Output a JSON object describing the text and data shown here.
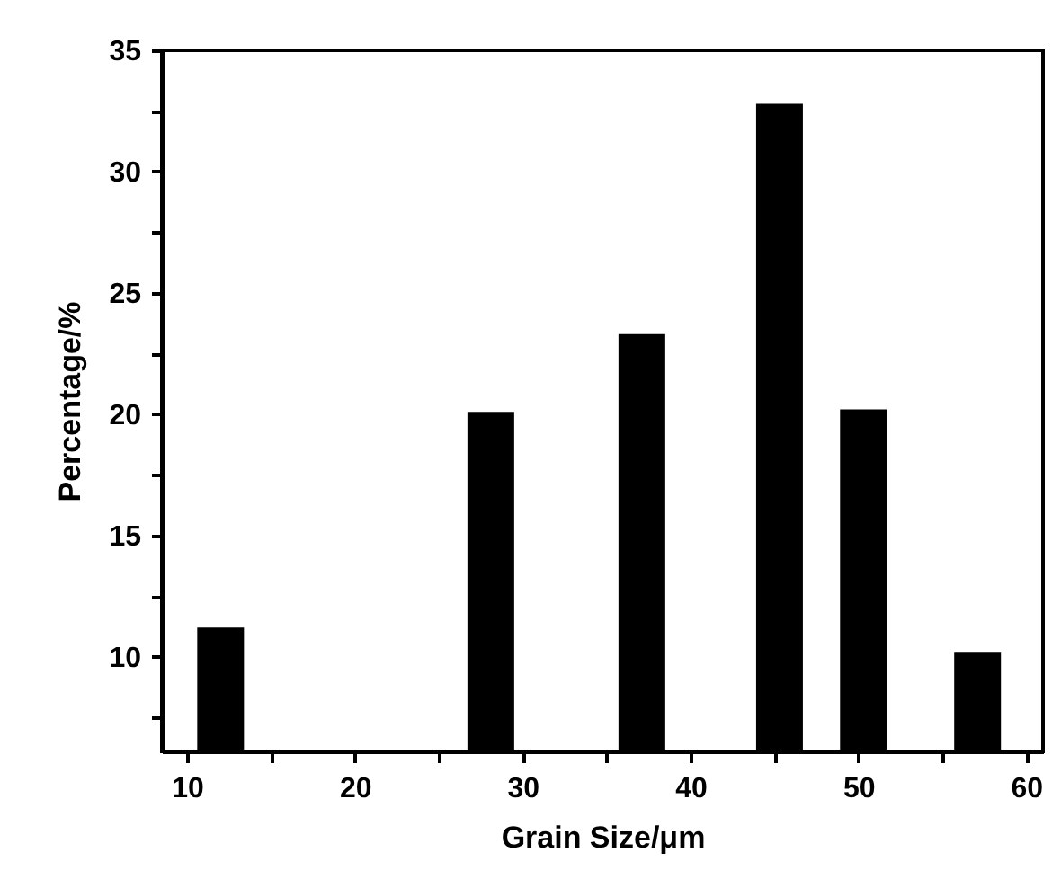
{
  "chart_data": {
    "type": "bar",
    "xlabel": "Grain Size/μm",
    "ylabel": "Percentage/%",
    "x": [
      12,
      28.1,
      37.1,
      45.3,
      50.3,
      57.1
    ],
    "values": [
      11.2,
      20.1,
      23.3,
      32.8,
      20.2,
      10.2
    ],
    "color": "#000000",
    "xlim": [
      8.5,
      61
    ],
    "xticks": [
      10,
      {
        "value": 15,
        "label": null
      },
      20,
      {
        "value": 25,
        "label": null
      },
      30,
      {
        "value": 35,
        "label": null
      },
      40,
      {
        "value": 45,
        "label": null
      },
      50,
      {
        "value": 55,
        "label": null
      },
      60
    ],
    "ylim": [
      6.1,
      35
    ],
    "yticks": [
      {
        "value": 7.5,
        "label": null
      },
      10,
      {
        "value": 12.5,
        "label": null
      },
      15,
      {
        "value": 17.5,
        "label": null
      },
      20,
      {
        "value": 22.5,
        "label": null
      },
      25,
      {
        "value": 27.5,
        "label": null
      },
      30,
      {
        "value": 32.5,
        "label": null
      },
      35
    ],
    "grid": false
  }
}
